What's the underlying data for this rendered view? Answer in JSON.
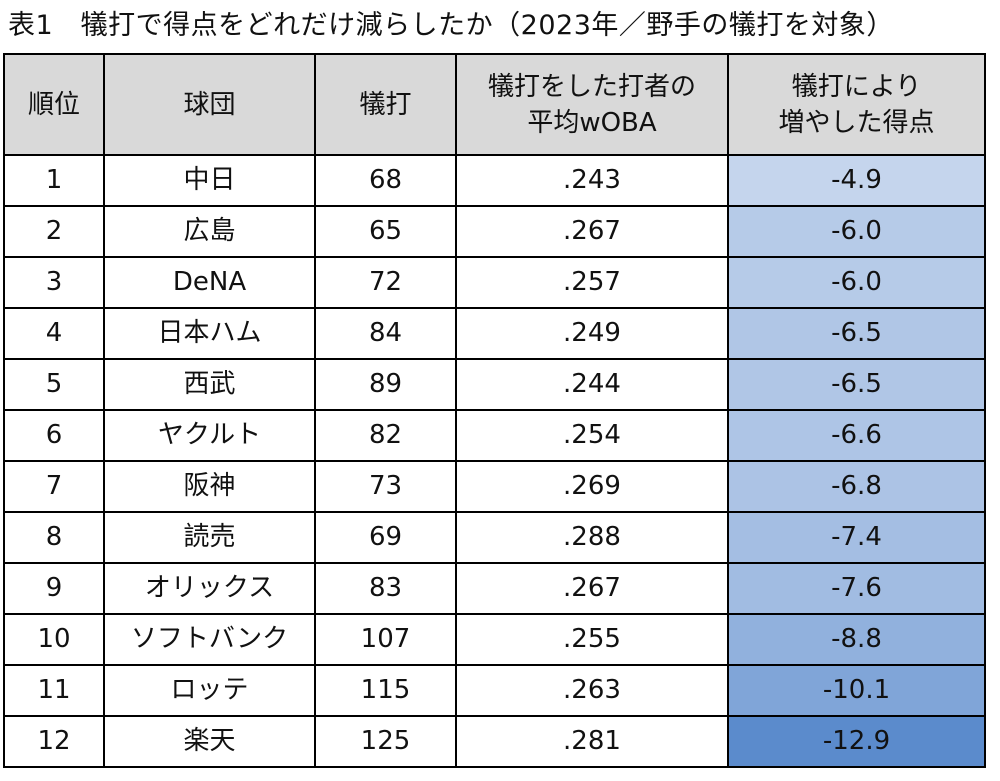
{
  "title": "表1　犠打で得点をどれだけ減らしたか（2023年／野手の犠打を対象）",
  "headers": {
    "rank": "順位",
    "team": "球団",
    "sac": "犠打",
    "woba_line1": "犠打をした打者の",
    "woba_line2": "平均wOBA",
    "runs_line1": "犠打により",
    "runs_line2": "増やした得点"
  },
  "colors": {
    "header_bg": "#d9d9d9",
    "scale_light": "#c5d5ed",
    "scale_dark": "#5b8bcc"
  },
  "rows": [
    {
      "rank": "1",
      "team": "中日",
      "sac": "68",
      "woba": ".243",
      "runs": "-4.9",
      "runs_value": -4.9
    },
    {
      "rank": "2",
      "team": "広島",
      "sac": "65",
      "woba": ".267",
      "runs": "-6.0",
      "runs_value": -6.0
    },
    {
      "rank": "3",
      "team": "DeNA",
      "sac": "72",
      "woba": ".257",
      "runs": "-6.0",
      "runs_value": -6.0
    },
    {
      "rank": "4",
      "team": "日本ハム",
      "sac": "84",
      "woba": ".249",
      "runs": "-6.5",
      "runs_value": -6.5
    },
    {
      "rank": "5",
      "team": "西武",
      "sac": "89",
      "woba": ".244",
      "runs": "-6.5",
      "runs_value": -6.5
    },
    {
      "rank": "6",
      "team": "ヤクルト",
      "sac": "82",
      "woba": ".254",
      "runs": "-6.6",
      "runs_value": -6.6
    },
    {
      "rank": "7",
      "team": "阪神",
      "sac": "73",
      "woba": ".269",
      "runs": "-6.8",
      "runs_value": -6.8
    },
    {
      "rank": "8",
      "team": "読売",
      "sac": "69",
      "woba": ".288",
      "runs": "-7.4",
      "runs_value": -7.4
    },
    {
      "rank": "9",
      "team": "オリックス",
      "sac": "83",
      "woba": ".267",
      "runs": "-7.6",
      "runs_value": -7.6
    },
    {
      "rank": "10",
      "team": "ソフトバンク",
      "sac": "107",
      "woba": ".255",
      "runs": "-8.8",
      "runs_value": -8.8
    },
    {
      "rank": "11",
      "team": "ロッテ",
      "sac": "115",
      "woba": ".263",
      "runs": "-10.1",
      "runs_value": -10.1
    },
    {
      "rank": "12",
      "team": "楽天",
      "sac": "125",
      "woba": ".281",
      "runs": "-12.9",
      "runs_value": -12.9
    }
  ]
}
